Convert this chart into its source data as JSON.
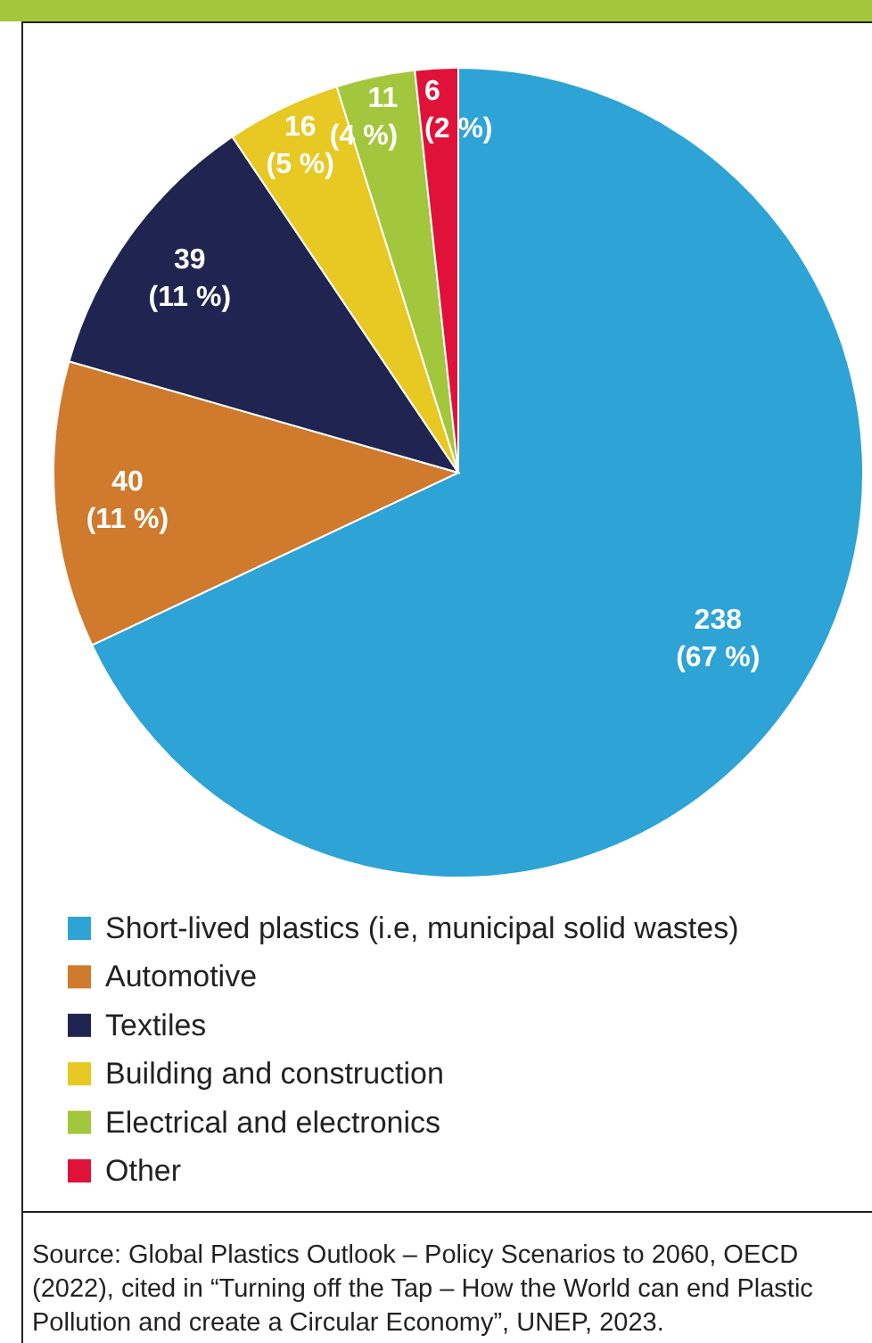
{
  "chart_data": {
    "type": "pie",
    "categories": [
      "Short-lived plastics (i.e, municipal solid wastes)",
      "Automotive",
      "Textiles",
      "Building and construction",
      "Electrical and electronics",
      "Other"
    ],
    "values": [
      238,
      40,
      39,
      16,
      11,
      6
    ],
    "colors": [
      "#2ea3d5",
      "#d07a2d",
      "#1f2550",
      "#e8c823",
      "#a3c73c",
      "#e0123a"
    ],
    "value_labels": [
      "238\n(67 %)",
      "40\n(11 %)",
      "39\n(11 %)",
      "16\n(5 %)",
      "11\n(4 %)",
      "6\n(2 %)"
    ],
    "legend": "bottom",
    "annotations": [
      "Source: Global Plastics Outlook – Policy Scenarios to 2060, OECD (2022), cited in “Turning off the Tap – How the World can end Plastic Pollution and create a Circular Economy”, UNEP, 2023."
    ]
  }
}
